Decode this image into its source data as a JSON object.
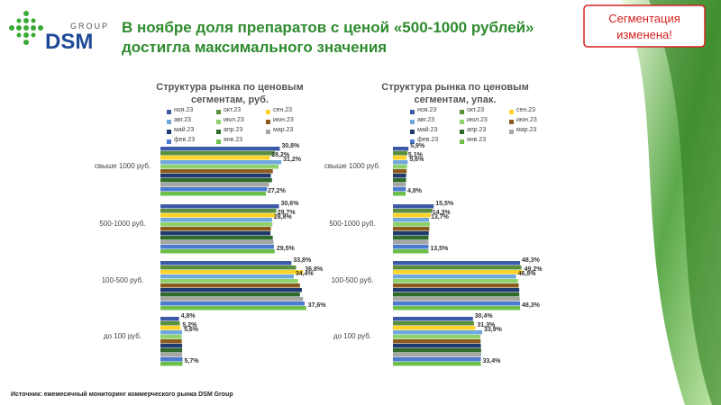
{
  "logo": {
    "brand": "DSM",
    "group": "GROUP"
  },
  "headline": "В ноябре доля препаратов с ценой «500-1000 рублей» достигла максимального значения",
  "badge": "Сегментация изменена!",
  "source": "Источник: ежемесячный мониторинг коммерческого рынка DSM Group",
  "chart_data": [
    {
      "type": "hbar",
      "title": "Структура рынка по ценовым сегментам, руб.",
      "xlim": [
        0,
        40
      ],
      "categories": [
        "свыше 1000 руб.",
        "500-1000 руб.",
        "100-500 руб.",
        "до 100 руб."
      ],
      "series": [
        {
          "name": "ноя.23",
          "color": "#3c5aa6",
          "values": [
            30.8,
            30.6,
            33.8,
            4.8
          ],
          "value_labels": [
            "30,8%",
            "30,6%",
            "33,8%",
            "4,8%"
          ]
        },
        {
          "name": "окт.23",
          "color": "#5b8f3a",
          "values": [
            29.5,
            29.9,
            35.0,
            5.0
          ]
        },
        {
          "name": "сен.23",
          "color": "#ffd32a",
          "values": [
            28.2,
            29.7,
            36.8,
            5.2
          ],
          "value_labels": [
            "28,2%",
            "29,7%",
            "36,8%",
            "5,2%"
          ]
        },
        {
          "name": "авг.23",
          "color": "#6fa8dc",
          "values": [
            31.2,
            28.8,
            34.4,
            5.6
          ],
          "value_labels": [
            "31,2%",
            "28,8%",
            "34,4%",
            "5,6%"
          ]
        },
        {
          "name": "июл.23",
          "color": "#8fd16a",
          "values": [
            30.5,
            28.9,
            35.5,
            5.5
          ]
        },
        {
          "name": "июн.23",
          "color": "#8b5a1e",
          "values": [
            29.0,
            28.5,
            36.0,
            5.5
          ]
        },
        {
          "name": "май.23",
          "color": "#1f3a6e",
          "values": [
            28.5,
            28.4,
            36.5,
            5.6
          ]
        },
        {
          "name": "апр.23",
          "color": "#2f6b2a",
          "values": [
            28.8,
            29.0,
            36.0,
            5.6
          ]
        },
        {
          "name": "мар.23",
          "color": "#a6a6a6",
          "values": [
            28.0,
            29.2,
            36.8,
            5.6
          ]
        },
        {
          "name": "фев.23",
          "color": "#4a7bd0",
          "values": [
            27.5,
            29.3,
            37.2,
            5.7
          ]
        },
        {
          "name": "янв.23",
          "color": "#6cc04a",
          "values": [
            27.2,
            29.5,
            37.6,
            5.7
          ],
          "value_labels": [
            "27,2%",
            "29,5%",
            "37,6%",
            "5,7%"
          ]
        }
      ]
    },
    {
      "type": "hbar",
      "title": "Структура рынка по ценовым сегментам, упак.",
      "xlim": [
        0,
        50
      ],
      "categories": [
        "свыше 1000 руб.",
        "500-1000 руб.",
        "100-500 руб.",
        "до 100 руб."
      ],
      "series": [
        {
          "name": "ноя.23",
          "color": "#3c5aa6",
          "values": [
            5.9,
            15.5,
            48.3,
            30.4
          ],
          "value_labels": [
            "5,9%",
            "15,5%",
            "48,3%",
            "30,4%"
          ]
        },
        {
          "name": "окт.23",
          "color": "#5b8f3a",
          "values": [
            5.5,
            15.0,
            48.8,
            30.8
          ]
        },
        {
          "name": "сен.23",
          "color": "#ffd32a",
          "values": [
            5.1,
            14.3,
            49.2,
            31.3
          ],
          "value_labels": [
            "5,1%",
            "14,3%",
            "49,2%",
            "31,3%"
          ]
        },
        {
          "name": "авг.23",
          "color": "#6fa8dc",
          "values": [
            5.6,
            13.7,
            46.8,
            33.9
          ],
          "value_labels": [
            "5,6%",
            "13,7%",
            "46,8%",
            "33,9%"
          ]
        },
        {
          "name": "июл.23",
          "color": "#8fd16a",
          "values": [
            5.3,
            14.0,
            47.5,
            33.2
          ]
        },
        {
          "name": "июн.23",
          "color": "#8b5a1e",
          "values": [
            5.2,
            13.8,
            47.8,
            33.3
          ]
        },
        {
          "name": "май.23",
          "color": "#1f3a6e",
          "values": [
            5.0,
            13.6,
            48.0,
            33.4
          ]
        },
        {
          "name": "апр.23",
          "color": "#2f6b2a",
          "values": [
            5.0,
            13.5,
            48.0,
            33.5
          ]
        },
        {
          "name": "мар.23",
          "color": "#a6a6a6",
          "values": [
            4.9,
            13.5,
            48.2,
            33.5
          ]
        },
        {
          "name": "фев.23",
          "color": "#4a7bd0",
          "values": [
            4.9,
            13.5,
            48.3,
            33.4
          ]
        },
        {
          "name": "янв.23",
          "color": "#6cc04a",
          "values": [
            4.8,
            13.5,
            48.3,
            33.4
          ],
          "value_labels": [
            "4,8%",
            "13,5%",
            "48,3%",
            "33,4%"
          ]
        }
      ]
    }
  ]
}
